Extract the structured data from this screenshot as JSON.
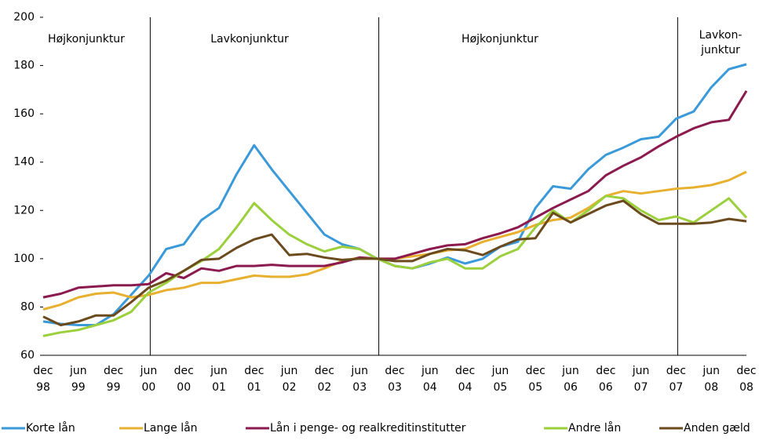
{
  "chart_data": {
    "type": "line",
    "categories": [
      "dec 98",
      null,
      "jun 99",
      null,
      "dec 99",
      null,
      "jun 00",
      null,
      "dec 00",
      null,
      "jun 01",
      null,
      "dec 01",
      null,
      "jun 02",
      null,
      "dec 02",
      null,
      "jun 03",
      null,
      "dec 03",
      null,
      "jun 04",
      null,
      "dec 04",
      null,
      "jun 05",
      null,
      "dec 05",
      null,
      "jun 06",
      null,
      "dec 06",
      null,
      "jun 07",
      null,
      "dec 07",
      null,
      "jun 08",
      null,
      "dec 08"
    ],
    "series": [
      {
        "name": "Korte lån",
        "color": "#3a9ad9",
        "values": [
          74,
          73,
          72.5,
          72.5,
          77,
          85,
          93,
          104,
          106,
          116,
          121,
          135,
          147,
          137,
          128,
          119,
          110,
          106,
          104,
          100,
          97,
          96,
          98,
          100.5,
          98,
          100,
          105,
          107,
          121,
          130,
          129,
          137,
          143,
          146,
          149.5,
          150.5,
          158,
          161,
          171,
          178.5,
          180.5
        ]
      },
      {
        "name": "Lange lån",
        "color": "#e8b030",
        "values": [
          79,
          81,
          84,
          85.5,
          86,
          84,
          85,
          87,
          88,
          90,
          90,
          91.5,
          93,
          92.5,
          92.5,
          93.5,
          96,
          99,
          100.5,
          100,
          100,
          101,
          102,
          103.5,
          104,
          107,
          109,
          111,
          114,
          116,
          117,
          121,
          126,
          128,
          127,
          128,
          129,
          129.5,
          130.5,
          132.5,
          136
        ]
      },
      {
        "name": "Lån i penge- og realkreditinstitutter",
        "color": "#8b1a4f",
        "values": [
          84,
          85.5,
          88,
          88.5,
          89,
          89,
          89.5,
          94,
          92,
          96,
          95,
          97,
          97,
          97.5,
          97,
          97,
          97,
          98.5,
          100.5,
          100,
          100,
          102,
          104,
          105.5,
          106,
          108.5,
          110.5,
          113,
          117,
          121,
          124.5,
          128,
          134.5,
          138.5,
          142,
          146.5,
          150.5,
          154,
          156.5,
          157.5,
          169.5
        ]
      },
      {
        "name": "Andre lån",
        "color": "#9bcf3c",
        "values": [
          68,
          69.5,
          70.5,
          72.5,
          74.5,
          78,
          86,
          90,
          95,
          99,
          104,
          113,
          123,
          116,
          110,
          106,
          103,
          105,
          104,
          100,
          97,
          96,
          98.5,
          100,
          96,
          96,
          101,
          104,
          113,
          120,
          115,
          120,
          126,
          125,
          120,
          116,
          117.5,
          115,
          120,
          125,
          117
        ]
      },
      {
        "name": "Anden gæld",
        "color": "#6b4a1e",
        "values": [
          76,
          72.5,
          74,
          76.5,
          76.5,
          82,
          88,
          91,
          95,
          99.5,
          100,
          104.5,
          108,
          110,
          101.5,
          102,
          100.5,
          99.5,
          100,
          100,
          99,
          99,
          102,
          104,
          103.5,
          101.5,
          105,
          108,
          108.5,
          119,
          115,
          118.5,
          122,
          124,
          118.5,
          114.5,
          114.5,
          114.5,
          115,
          116.5,
          115.5
        ]
      }
    ],
    "annotations": [
      [
        "Højkonjunktur"
      ],
      [
        "Lavkonjunktur"
      ],
      [
        "Højkonjunktur"
      ],
      [
        "Lavkon-",
        "junktur"
      ]
    ],
    "ylim": [
      60,
      200
    ],
    "yticks": [
      60,
      80,
      100,
      120,
      140,
      160,
      180,
      200
    ],
    "grid": false
  }
}
